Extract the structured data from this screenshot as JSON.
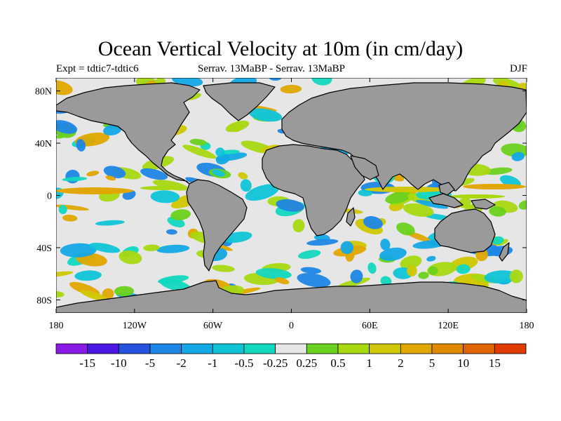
{
  "title": "Ocean Vertical Velocity at 10m (in cm/day)",
  "subtitle_left": "Expt = tdtic7-tdtic6",
  "subtitle_center": "Serrav.   13MaBP - Serrav.   13MaBP",
  "subtitle_right": "DJF",
  "map": {
    "lat_ticks": [
      "80N",
      "40N",
      "0",
      "40S",
      "80S"
    ],
    "lon_ticks": [
      "180",
      "120W",
      "60W",
      "0",
      "60E",
      "120E",
      "180"
    ],
    "land_color": "#9a9a9a",
    "background_color": "#e6e6e6"
  },
  "colorbar": {
    "colors": [
      "#8a1be6",
      "#4a17e6",
      "#2553e0",
      "#1e86e6",
      "#14a8e6",
      "#10c4d8",
      "#12d8c0",
      "#e6e6e6",
      "#6ad11e",
      "#a8d810",
      "#d0c800",
      "#e0a800",
      "#e08a00",
      "#e06400",
      "#e03c00"
    ],
    "labels": [
      "-15",
      "-10",
      "-5",
      "-2",
      "-1",
      "-0.5",
      "-0.25",
      "0.25",
      "0.5",
      "1",
      "2",
      "5",
      "10",
      "15"
    ]
  }
}
